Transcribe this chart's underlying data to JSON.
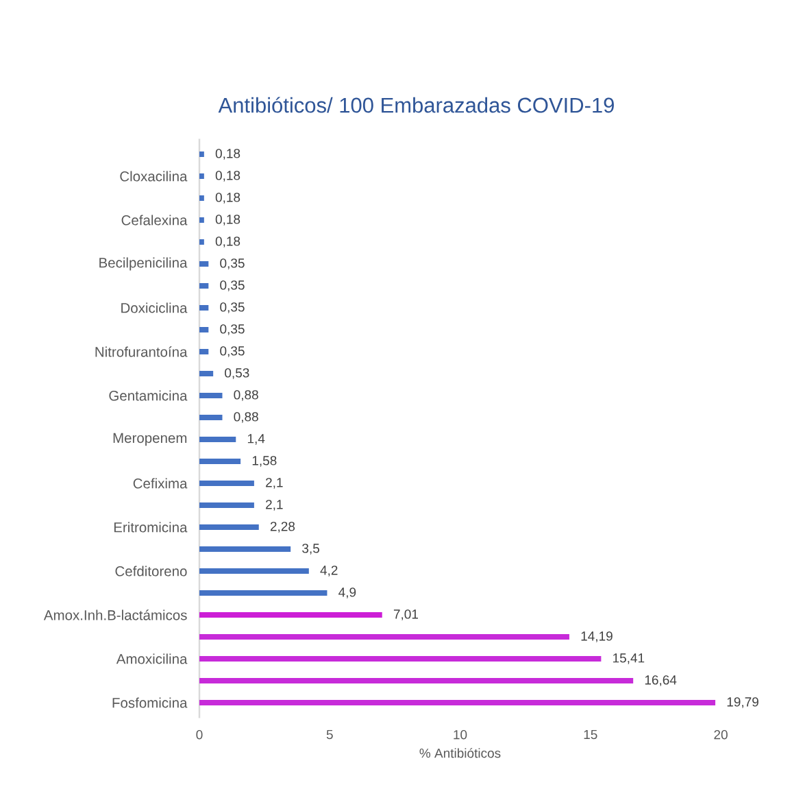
{
  "chart_data": {
    "type": "bar",
    "orientation": "horizontal",
    "title": "Antibióticos/ 100  Embarazadas COVID-19",
    "xlabel": "% Antibióticos",
    "categories": [
      null,
      "Cloxacilina",
      null,
      "Cefalexina",
      null,
      "Becilpenicilina",
      null,
      "Doxiciclina",
      null,
      "Nitrofurantoína",
      null,
      "Gentamicina",
      null,
      "Meropenem",
      null,
      "Cefixima",
      null,
      "Eritromicina",
      null,
      "Cefditoreno",
      null,
      "Amox.Inh.B-lactámicos",
      null,
      "Amoxicilina",
      null,
      "Fosfomicina"
    ],
    "values": [
      0.18,
      0.18,
      0.18,
      0.18,
      0.18,
      0.35,
      0.35,
      0.35,
      0.35,
      0.35,
      0.53,
      0.88,
      0.88,
      1.4,
      1.58,
      2.1,
      2.1,
      2.28,
      3.5,
      4.2,
      4.9,
      7.01,
      14.19,
      15.41,
      16.64,
      19.79
    ],
    "value_labels": [
      "0,18",
      "0,18",
      "0,18",
      "0,18",
      "0,18",
      "0,35",
      "0,35",
      "0,35",
      "0,35",
      "0,35",
      "0,53",
      "0,88",
      "0,88",
      "1,4",
      "1,58",
      "2,1",
      "2,1",
      "2,28",
      "3,5",
      "4,2",
      "4,9",
      "7,01",
      "14,19",
      "15,41",
      "16,64",
      "19,79"
    ],
    "colors": [
      "#4472c4",
      "#4472c4",
      "#4472c4",
      "#4472c4",
      "#4472c4",
      "#4472c4",
      "#4472c4",
      "#4472c4",
      "#4472c4",
      "#4472c4",
      "#4472c4",
      "#4472c4",
      "#4472c4",
      "#4472c4",
      "#4472c4",
      "#4472c4",
      "#4472c4",
      "#4472c4",
      "#4472c4",
      "#4472c4",
      "#4472c4",
      "#cc1ed6",
      "#c72bd9",
      "#c72bd9",
      "#c72bd9",
      "#c72bd9"
    ],
    "xlim": [
      0,
      20
    ],
    "xticks": [
      0,
      5,
      10,
      15,
      20
    ]
  }
}
